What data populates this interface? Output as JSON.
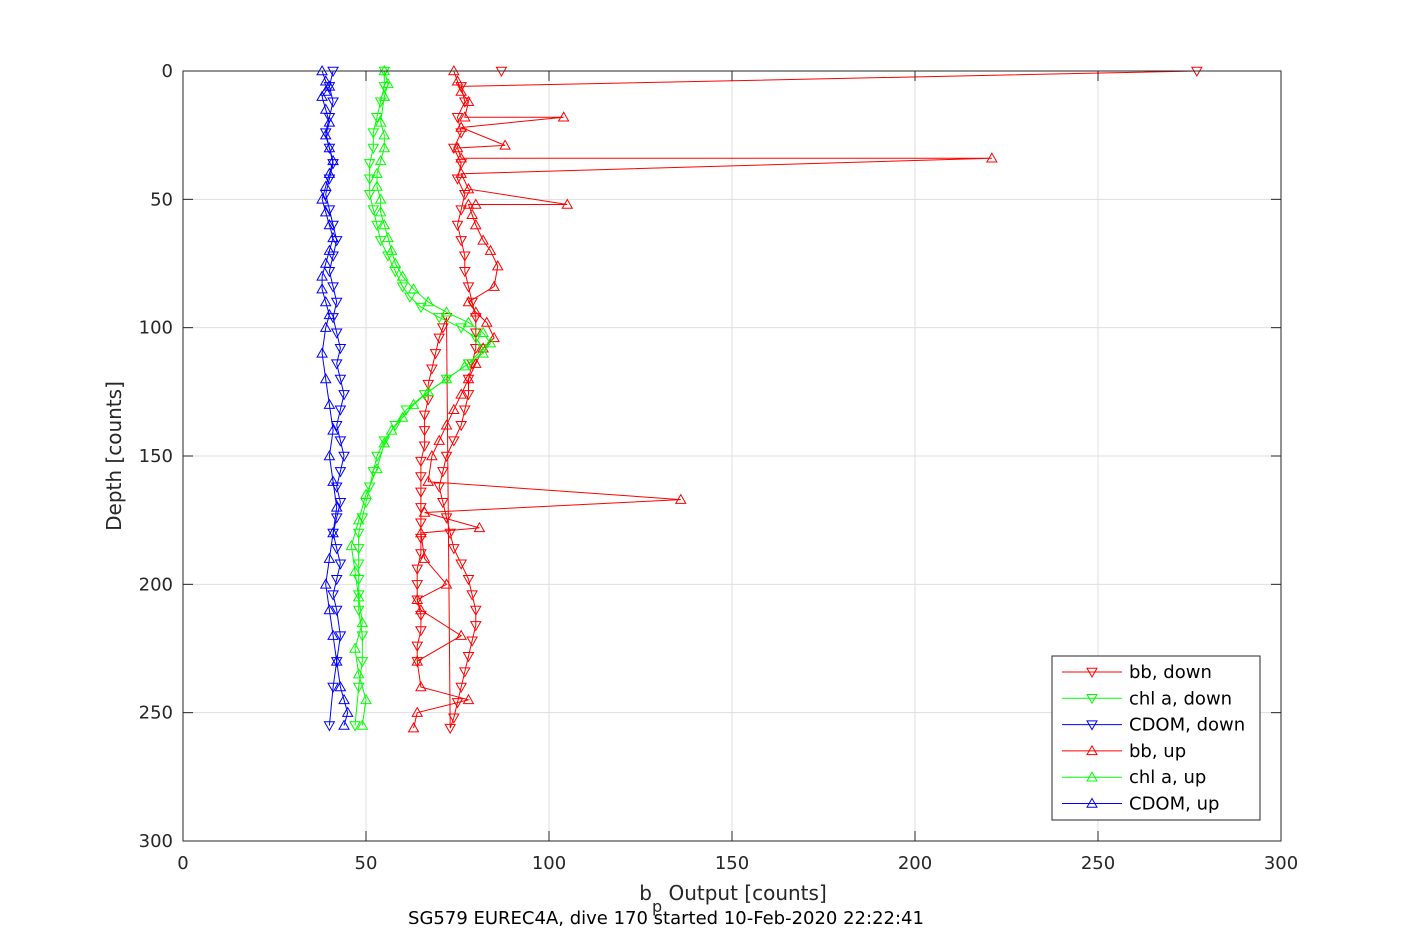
{
  "chart_data": {
    "type": "line",
    "title": "",
    "xlabel": "b",
    "xlabel_sub": "p",
    "xlabel_rest": " Output [counts]",
    "ylabel": "Depth [counts]",
    "caption": "SG579 EUREC4A, dive 170 started 10-Feb-2020 22:22:41",
    "xlim": [
      0,
      300
    ],
    "ylim": [
      0,
      300
    ],
    "y_reversed": true,
    "grid": true,
    "xticks": [
      "0",
      "50",
      "100",
      "150",
      "200",
      "250",
      "300"
    ],
    "yticks": [
      "0",
      "50",
      "100",
      "150",
      "200",
      "250",
      "300"
    ],
    "legend_position": "bottom-right",
    "series": [
      {
        "name": "bb, down",
        "color": "#ff0000",
        "marker": "triangle-down",
        "x": [
          87,
          277,
          76,
          77,
          75,
          76,
          74,
          76,
          75,
          77,
          76,
          75,
          76,
          77,
          77,
          78,
          79,
          80,
          80,
          80,
          79,
          78,
          78,
          77,
          76,
          74,
          72,
          71,
          70,
          71,
          72,
          73,
          74,
          76,
          78,
          79,
          80,
          80,
          79,
          78,
          77,
          76,
          75,
          74,
          73,
          72,
          71,
          70,
          69,
          68,
          67,
          67,
          66,
          66,
          66,
          65,
          65,
          65,
          65,
          65,
          65,
          65,
          64,
          64,
          64,
          65,
          65,
          64,
          64
        ],
        "y": [
          0,
          0,
          6,
          12,
          18,
          24,
          30,
          36,
          42,
          48,
          54,
          60,
          66,
          72,
          78,
          84,
          90,
          96,
          102,
          108,
          114,
          120,
          126,
          132,
          138,
          144,
          150,
          156,
          162,
          168,
          174,
          180,
          186,
          192,
          198,
          204,
          210,
          216,
          222,
          228,
          234,
          240,
          246,
          252,
          256,
          96,
          100,
          104,
          110,
          116,
          122,
          128,
          134,
          140,
          146,
          152,
          158,
          164,
          170,
          176,
          182,
          188,
          194,
          200,
          206,
          212,
          218,
          224,
          230
        ]
      },
      {
        "name": "chl a, down",
        "color": "#00ff00",
        "marker": "triangle-down",
        "x": [
          55,
          55,
          54,
          53,
          52,
          52,
          51,
          51,
          51,
          52,
          53,
          54,
          56,
          58,
          60,
          62,
          65,
          70,
          76,
          80,
          82,
          78,
          72,
          66,
          61,
          58,
          55,
          53,
          52,
          51,
          50,
          49,
          48,
          48,
          48,
          48,
          48,
          48,
          49,
          49,
          48,
          47
        ],
        "y": [
          0,
          6,
          12,
          18,
          24,
          30,
          36,
          42,
          48,
          54,
          60,
          66,
          72,
          78,
          84,
          88,
          92,
          96,
          100,
          104,
          108,
          114,
          120,
          126,
          132,
          138,
          144,
          150,
          156,
          162,
          168,
          174,
          180,
          186,
          192,
          198,
          204,
          210,
          220,
          230,
          240,
          255
        ]
      },
      {
        "name": "CDOM, down",
        "color": "#0000ff",
        "marker": "triangle-down",
        "x": [
          41,
          40,
          41,
          40,
          39,
          40,
          41,
          40,
          39,
          40,
          41,
          42,
          41,
          40,
          41,
          42,
          41,
          42,
          43,
          42,
          43,
          44,
          43,
          42,
          43,
          44,
          43,
          42,
          43,
          42,
          41,
          42,
          43,
          42,
          41,
          42,
          43,
          42,
          41,
          40
        ],
        "y": [
          0,
          6,
          12,
          18,
          24,
          30,
          36,
          42,
          48,
          54,
          60,
          66,
          72,
          78,
          84,
          90,
          96,
          102,
          108,
          114,
          120,
          126,
          132,
          138,
          144,
          150,
          156,
          162,
          168,
          174,
          180,
          186,
          192,
          198,
          204,
          210,
          220,
          230,
          240,
          255
        ]
      },
      {
        "name": "bb, up",
        "color": "#ff0000",
        "marker": "triangle-up",
        "x": [
          63,
          64,
          78,
          65,
          64,
          76,
          65,
          64,
          72,
          66,
          65,
          81,
          66,
          136,
          67,
          68,
          70,
          72,
          74,
          76,
          78,
          80,
          82,
          85,
          83,
          80,
          78,
          85,
          86,
          84,
          82,
          80,
          79,
          78,
          80,
          105,
          78,
          76,
          221,
          76,
          75,
          88,
          76,
          104,
          77,
          78,
          76,
          75,
          74
        ],
        "y": [
          256,
          250,
          245,
          240,
          230,
          220,
          210,
          206,
          200,
          190,
          180,
          178,
          172,
          167,
          160,
          150,
          144,
          138,
          132,
          126,
          120,
          114,
          108,
          104,
          98,
          94,
          90,
          84,
          76,
          70,
          66,
          60,
          56,
          52,
          52,
          52,
          46,
          40,
          34,
          34,
          30,
          29,
          22,
          18,
          18,
          12,
          8,
          4,
          0
        ]
      },
      {
        "name": "chl a, up",
        "color": "#00ff00",
        "marker": "triangle-up",
        "x": [
          49,
          50,
          48,
          47,
          49,
          48,
          47,
          46,
          48,
          50,
          53,
          55,
          57,
          60,
          63,
          67,
          72,
          77,
          82,
          84,
          82,
          78,
          72,
          67,
          63,
          60,
          58,
          57,
          56,
          55,
          54,
          54,
          53,
          53,
          54,
          55,
          55,
          54,
          55,
          56,
          55
        ],
        "y": [
          255,
          245,
          235,
          225,
          215,
          205,
          195,
          185,
          175,
          165,
          155,
          145,
          140,
          135,
          130,
          125,
          120,
          115,
          110,
          106,
          102,
          98,
          94,
          90,
          85,
          80,
          75,
          70,
          65,
          60,
          55,
          50,
          45,
          40,
          35,
          30,
          25,
          20,
          10,
          5,
          0
        ]
      },
      {
        "name": "CDOM, up",
        "color": "#0000ff",
        "marker": "triangle-up",
        "x": [
          44,
          45,
          44,
          43,
          42,
          41,
          40,
          39,
          40,
          41,
          42,
          41,
          40,
          41,
          40,
          39,
          38,
          39,
          40,
          39,
          38,
          38,
          39,
          40,
          41,
          40,
          39,
          38,
          39,
          40,
          41,
          40,
          39,
          40,
          39,
          38,
          39,
          40,
          39,
          38
        ],
        "y": [
          255,
          250,
          245,
          240,
          230,
          220,
          210,
          200,
          190,
          180,
          170,
          160,
          150,
          140,
          130,
          120,
          110,
          100,
          95,
          90,
          85,
          80,
          75,
          70,
          65,
          60,
          55,
          50,
          45,
          40,
          35,
          30,
          25,
          20,
          15,
          10,
          8,
          6,
          4,
          0
        ]
      }
    ]
  }
}
